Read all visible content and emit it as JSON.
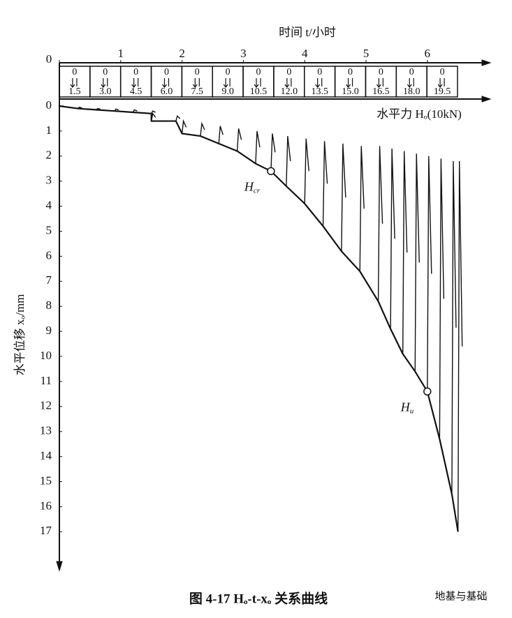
{
  "chart_data": {
    "type": "line",
    "title": "图 4-17  Hₒ-t-xₒ 关系曲线",
    "x_label": "时间 t/小时",
    "y_label": "水平位移 xₒ/mm",
    "load_label": "水平力 Hₒ(10kN)",
    "load_min": "0",
    "load_steps": [
      "1.5",
      "3.0",
      "4.5",
      "6.0",
      "7.5",
      "9.0",
      "10.5",
      "12.0",
      "13.5",
      "15.0",
      "16.5",
      "18.0",
      "19.5"
    ],
    "xlim": [
      0,
      7
    ],
    "xticks": [
      0,
      1,
      2,
      3,
      4,
      5,
      6
    ],
    "ylim": [
      0,
      18.5
    ],
    "yticks": [
      0,
      1,
      2,
      3,
      4,
      5,
      6,
      7,
      8,
      9,
      10,
      11,
      12,
      13,
      14,
      15,
      16,
      17
    ],
    "y_inverted": true,
    "color": "#111111",
    "x": [
      0,
      0.3,
      0.6,
      0.9,
      1.2,
      1.5,
      1.5,
      1.9,
      2.0,
      2.3,
      2.6,
      2.9,
      3.2,
      3.45,
      3.7,
      4.0,
      4.3,
      4.6,
      4.9,
      5.2,
      5.4,
      5.6,
      5.8,
      6.0,
      6.2,
      6.4,
      6.5
    ],
    "series": [
      {
        "values": [
          0,
          0.1,
          0.15,
          0.2,
          0.25,
          0.3,
          0.6,
          0.6,
          1.1,
          1.2,
          1.5,
          1.8,
          2.3,
          2.6,
          3.2,
          3.9,
          4.8,
          5.8,
          6.6,
          7.8,
          8.9,
          9.9,
          10.6,
          11.4,
          13.3,
          15.5,
          17.0
        ]
      },
      {
        "values": [
          0,
          0.05,
          0.1,
          0.12,
          0.15,
          0.2,
          0.3,
          0.4,
          0.6,
          0.7,
          0.8,
          0.9,
          1.0,
          1.1,
          1.2,
          1.3,
          1.4,
          1.5,
          1.6,
          1.6,
          1.7,
          1.8,
          1.9,
          2.0,
          2.1,
          2.2,
          2.2
        ]
      }
    ],
    "annotations": [
      {
        "text": "H",
        "sub": "cr",
        "x": 3.45,
        "y": 2.6
      },
      {
        "text": "H",
        "sub": "u",
        "x": 6.0,
        "y": 11.4
      }
    ],
    "watermark": "地基与基础"
  }
}
